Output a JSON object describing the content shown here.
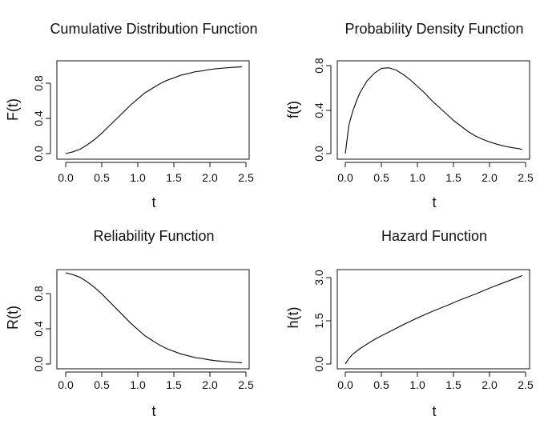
{
  "chart_data": [
    {
      "type": "line",
      "title": "Cumulative Distribution Function",
      "xlabel": "t",
      "ylabel": "F(t)",
      "xlim": [
        0,
        2.5
      ],
      "ylim": [
        0,
        1
      ],
      "xticks": [
        "0.0",
        "0.5",
        "1.0",
        "1.5",
        "2.0",
        "2.5"
      ],
      "yticks": [
        "0.0",
        "0.4",
        "0.8"
      ],
      "grid": false,
      "x": [
        0,
        0.1,
        0.2,
        0.3,
        0.4,
        0.5,
        0.6,
        0.7,
        0.8,
        0.9,
        1,
        1.1,
        1.2,
        1.3,
        1.4,
        1.5,
        1.6,
        1.7,
        1.8,
        1.9,
        2,
        2.1,
        2.2,
        2.3,
        2.4,
        2.45
      ],
      "y": [
        0,
        0.02,
        0.05,
        0.1,
        0.16,
        0.23,
        0.31,
        0.39,
        0.47,
        0.55,
        0.62,
        0.69,
        0.74,
        0.79,
        0.83,
        0.86,
        0.89,
        0.91,
        0.93,
        0.94,
        0.955,
        0.965,
        0.972,
        0.979,
        0.984,
        0.986
      ]
    },
    {
      "type": "line",
      "title": "Probability Density Function",
      "xlabel": "t",
      "ylabel": "f(t)",
      "xlim": [
        0,
        2.5
      ],
      "ylim": [
        0,
        0.8
      ],
      "xticks": [
        "0.0",
        "0.5",
        "1.0",
        "1.5",
        "2.0",
        "2.5"
      ],
      "yticks": [
        "0.0",
        "0.4",
        "0.8"
      ],
      "grid": false,
      "x": [
        0,
        0.05,
        0.1,
        0.15,
        0.2,
        0.3,
        0.4,
        0.5,
        0.6,
        0.7,
        0.8,
        0.9,
        1,
        1.1,
        1.2,
        1.3,
        1.4,
        1.5,
        1.6,
        1.7,
        1.8,
        1.9,
        2,
        2.1,
        2.2,
        2.3,
        2.4,
        2.45
      ],
      "y": [
        0,
        0.26,
        0.38,
        0.47,
        0.55,
        0.66,
        0.73,
        0.775,
        0.78,
        0.76,
        0.72,
        0.67,
        0.61,
        0.55,
        0.48,
        0.42,
        0.36,
        0.3,
        0.25,
        0.2,
        0.16,
        0.13,
        0.105,
        0.085,
        0.068,
        0.055,
        0.045,
        0.038
      ]
    },
    {
      "type": "line",
      "title": "Reliability Function",
      "xlabel": "t",
      "ylabel": "R(t)",
      "xlim": [
        0,
        2.5
      ],
      "ylim": [
        0,
        1
      ],
      "xticks": [
        "0.0",
        "0.5",
        "1.0",
        "1.5",
        "2.0",
        "2.5"
      ],
      "yticks": [
        "0.0",
        "0.4",
        "0.8"
      ],
      "grid": false,
      "x": [
        0,
        0.1,
        0.2,
        0.3,
        0.4,
        0.5,
        0.6,
        0.7,
        0.8,
        0.9,
        1,
        1.1,
        1.2,
        1.3,
        1.4,
        1.5,
        1.6,
        1.7,
        1.8,
        1.9,
        2,
        2.1,
        2.2,
        2.3,
        2.4,
        2.45
      ],
      "y": [
        1,
        0.98,
        0.95,
        0.9,
        0.84,
        0.77,
        0.69,
        0.61,
        0.53,
        0.45,
        0.38,
        0.31,
        0.26,
        0.21,
        0.17,
        0.14,
        0.11,
        0.09,
        0.07,
        0.06,
        0.045,
        0.035,
        0.028,
        0.021,
        0.016,
        0.014
      ]
    },
    {
      "type": "line",
      "title": "Hazard Function",
      "xlabel": "t",
      "ylabel": "h(t)",
      "xlim": [
        0,
        2.5
      ],
      "ylim": [
        0,
        3.3
      ],
      "xticks": [
        "0.0",
        "0.5",
        "1.0",
        "1.5",
        "2.0",
        "2.5"
      ],
      "yticks": [
        "0.0",
        "1.5",
        "3.0"
      ],
      "grid": false,
      "x": [
        0,
        0.05,
        0.1,
        0.2,
        0.3,
        0.4,
        0.5,
        0.6,
        0.8,
        1,
        1.2,
        1.4,
        1.6,
        1.8,
        2,
        2.2,
        2.45
      ],
      "y": [
        0,
        0.2,
        0.35,
        0.55,
        0.72,
        0.88,
        1.02,
        1.15,
        1.42,
        1.67,
        1.9,
        2.11,
        2.33,
        2.53,
        2.75,
        2.95,
        3.2
      ]
    }
  ]
}
